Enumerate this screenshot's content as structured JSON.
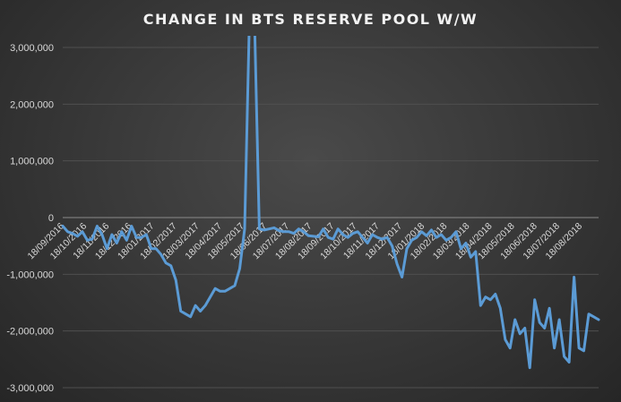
{
  "chart_data": {
    "type": "line",
    "title": "CHANGE IN BTS RESERVE POOL W/W",
    "xlabel": "",
    "ylabel": "",
    "ylim": [
      -3000000,
      3000000
    ],
    "grid": true,
    "legend": "none",
    "y_ticks": [
      3000000,
      2000000,
      1000000,
      0,
      -1000000,
      -2000000,
      -3000000
    ],
    "y_tick_labels": [
      "3,000,000",
      "2,000,000",
      "1,000,000",
      "0",
      "-1,000,000",
      "-2,000,000",
      "-3,000,000"
    ],
    "x_tick_labels": [
      "18/09/2016",
      "18/10/2016",
      "18/11/2016",
      "18/12/2016",
      "18/01/2017",
      "18/02/2017",
      "18/03/2017",
      "18/04/2017",
      "18/05/2017",
      "18/06/2017",
      "18/07/2017",
      "18/08/2017",
      "18/09/2017",
      "18/10/2017",
      "18/11/2017",
      "18/12/2017",
      "18/01/2018",
      "18/02/2018",
      "18/03/2018",
      "18/04/2018",
      "18/05/2018",
      "18/06/2018",
      "18/07/2018",
      "18/08/2018"
    ],
    "line_color": "#5b9bd5",
    "series": [
      {
        "values": [
          -150000,
          -250000,
          -280000,
          -330000,
          -250000,
          -400000,
          -380000,
          -150000,
          -300000,
          -550000,
          -300000,
          -450000,
          -250000,
          -400000,
          -150000,
          -350000,
          -350000,
          -300000,
          -550000,
          -550000,
          -650000,
          -800000,
          -850000,
          -1100000,
          -1650000,
          -1700000,
          -1750000,
          -1550000,
          -1650000,
          -1550000,
          -1400000,
          -1250000,
          -1300000,
          -1300000,
          -1250000,
          -1200000,
          -900000,
          -200000,
          3600000,
          3500000,
          -200000,
          -220000,
          -200000,
          -180000,
          -230000,
          -250000,
          -250000,
          -280000,
          -200000,
          -250000,
          -320000,
          -330000,
          -340000,
          -200000,
          -350000,
          -380000,
          -200000,
          -300000,
          -350000,
          -280000,
          -250000,
          -350000,
          -450000,
          -300000,
          -350000,
          -380000,
          -350000,
          -500000,
          -820000,
          -1050000,
          -550000,
          -400000,
          -350000,
          -250000,
          -320000,
          -220000,
          -350000,
          -300000,
          -400000,
          -350000,
          -250000,
          -550000,
          -450000,
          -700000,
          -600000,
          -1550000,
          -1400000,
          -1450000,
          -1350000,
          -1600000,
          -2150000,
          -2300000,
          -1800000,
          -2050000,
          -1950000,
          -2650000,
          -1450000,
          -1850000,
          -1950000,
          -1600000,
          -2300000,
          -1800000,
          -2450000,
          -2550000,
          -1050000,
          -2300000,
          -2350000,
          -1700000,
          -1750000,
          -1800000
        ]
      }
    ]
  }
}
